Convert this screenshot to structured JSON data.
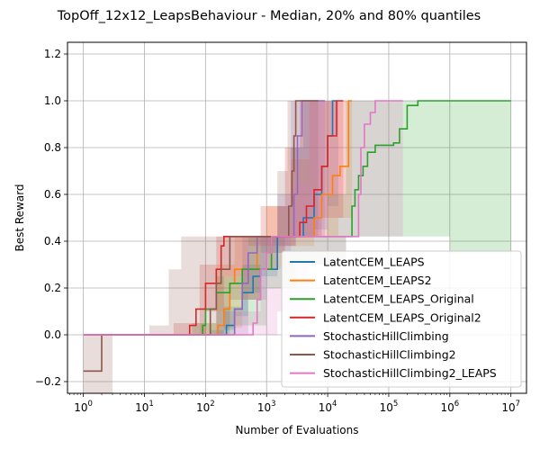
{
  "chart_data": {
    "type": "line",
    "title": "TopOff_12x12_LeapsBehaviour - Median, 20% and 80% quantiles",
    "xlabel": "Number of Evaluations",
    "ylabel": "Best Reward",
    "xscale": "log",
    "xlim": [
      0.55,
      18000000
    ],
    "ylim": [
      -0.25,
      1.25
    ],
    "x_ticks": [
      {
        "value": 1,
        "base": "10",
        "exp": "0"
      },
      {
        "value": 10,
        "base": "10",
        "exp": "1"
      },
      {
        "value": 100,
        "base": "10",
        "exp": "2"
      },
      {
        "value": 1000,
        "base": "10",
        "exp": "3"
      },
      {
        "value": 10000,
        "base": "10",
        "exp": "4"
      },
      {
        "value": 100000,
        "base": "10",
        "exp": "5"
      },
      {
        "value": 1000000,
        "base": "10",
        "exp": "6"
      },
      {
        "value": 10000000,
        "base": "10",
        "exp": "7"
      }
    ],
    "y_ticks": [
      "−0.2",
      "0.0",
      "0.2",
      "0.4",
      "0.6",
      "0.8",
      "1.0",
      "1.2"
    ],
    "y_tick_values": [
      -0.2,
      0.0,
      0.2,
      0.4,
      0.6,
      0.8,
      1.0,
      1.2
    ],
    "grid": true,
    "legend_position": "lower-right",
    "series": [
      {
        "name": "LatentCEM_LEAPS",
        "color": "#1f77b4",
        "median": [
          [
            1,
            0
          ],
          [
            200,
            0
          ],
          [
            220,
            0.04
          ],
          [
            300,
            0.11
          ],
          [
            400,
            0.18
          ],
          [
            600,
            0.25
          ],
          [
            800,
            0.28
          ],
          [
            1500,
            0.42
          ],
          [
            3000,
            0.42
          ],
          [
            4000,
            0.5
          ],
          [
            6000,
            0.6
          ],
          [
            8000,
            0.72
          ],
          [
            10000,
            0.85
          ],
          [
            12000,
            1.0
          ],
          [
            14000,
            1.0
          ]
        ],
        "band": [
          [
            [
              1,
              0
            ],
            [
              150,
              0
            ],
            [
              200,
              0.02
            ],
            [
              300,
              0.08
            ],
            [
              500,
              0.18
            ],
            [
              800,
              0.25
            ],
            [
              1500,
              0.38
            ],
            [
              3000,
              0.42
            ],
            [
              6000,
              0.45
            ],
            [
              10000,
              0.55
            ],
            [
              15000,
              0.7
            ]
          ],
          [
            [
              1,
              0
            ],
            [
              120,
              0.02
            ],
            [
              200,
              0.12
            ],
            [
              400,
              0.3
            ],
            [
              800,
              0.42
            ],
            [
              1500,
              0.55
            ],
            [
              2500,
              0.8
            ],
            [
              4000,
              1.0
            ],
            [
              15000,
              1.0
            ]
          ]
        ]
      },
      {
        "name": "LatentCEM_LEAPS2",
        "color": "#ff7f0e",
        "median": [
          [
            1,
            0
          ],
          [
            150,
            0
          ],
          [
            160,
            0.04
          ],
          [
            200,
            0.11
          ],
          [
            250,
            0.22
          ],
          [
            300,
            0.28
          ],
          [
            600,
            0.28
          ],
          [
            700,
            0.42
          ],
          [
            5000,
            0.42
          ],
          [
            6000,
            0.5
          ],
          [
            8000,
            0.6
          ],
          [
            12000,
            0.68
          ],
          [
            16000,
            0.72
          ],
          [
            20000,
            0.72
          ],
          [
            22000,
            1.0
          ],
          [
            25000,
            1.0
          ]
        ],
        "band": [
          [
            [
              1,
              0
            ],
            [
              120,
              0
            ],
            [
              200,
              0.03
            ],
            [
              400,
              0.15
            ],
            [
              800,
              0.28
            ],
            [
              2000,
              0.38
            ],
            [
              6000,
              0.42
            ],
            [
              15000,
              0.5
            ],
            [
              25000,
              0.6
            ]
          ],
          [
            [
              1,
              0
            ],
            [
              80,
              0.05
            ],
            [
              150,
              0.3
            ],
            [
              300,
              0.42
            ],
            [
              1000,
              0.55
            ],
            [
              2500,
              0.75
            ],
            [
              5000,
              1.0
            ],
            [
              25000,
              1.0
            ]
          ]
        ]
      },
      {
        "name": "LatentCEM_LEAPS_Original",
        "color": "#2ca02c",
        "median": [
          [
            1,
            0
          ],
          [
            80,
            0
          ],
          [
            90,
            0.04
          ],
          [
            100,
            0.11
          ],
          [
            150,
            0.18
          ],
          [
            250,
            0.22
          ],
          [
            400,
            0.28
          ],
          [
            1000,
            0.28
          ],
          [
            1200,
            0.42
          ],
          [
            22000,
            0.42
          ],
          [
            25000,
            0.55
          ],
          [
            28000,
            0.62
          ],
          [
            32000,
            0.68
          ],
          [
            38000,
            0.72
          ],
          [
            45000,
            0.78
          ],
          [
            60000,
            0.81
          ],
          [
            120000,
            0.82
          ],
          [
            150000,
            0.88
          ],
          [
            200000,
            0.98
          ],
          [
            300000,
            1.0
          ],
          [
            10000000,
            1.0
          ]
        ],
        "band": [
          [
            [
              1,
              0
            ],
            [
              100,
              0
            ],
            [
              300,
              0.04
            ],
            [
              1000,
              0.2
            ],
            [
              3000,
              0.3
            ],
            [
              20000,
              0.42
            ],
            [
              100000,
              0.42
            ],
            [
              1000000,
              0.35
            ],
            [
              10000000,
              0.3
            ]
          ],
          [
            [
              1,
              0
            ],
            [
              60,
              0.05
            ],
            [
              150,
              0.25
            ],
            [
              500,
              0.42
            ],
            [
              3000,
              0.42
            ],
            [
              10000,
              0.6
            ],
            [
              20000,
              1.0
            ],
            [
              10000000,
              1.0
            ]
          ]
        ]
      },
      {
        "name": "LatentCEM_LEAPS_Original2",
        "color": "#d62728",
        "median": [
          [
            1,
            0
          ],
          [
            50,
            0
          ],
          [
            55,
            0.04
          ],
          [
            70,
            0.11
          ],
          [
            100,
            0.22
          ],
          [
            150,
            0.28
          ],
          [
            180,
            0.38
          ],
          [
            200,
            0.42
          ],
          [
            3000,
            0.42
          ],
          [
            3500,
            0.48
          ],
          [
            4500,
            0.55
          ],
          [
            6000,
            0.62
          ],
          [
            8000,
            0.72
          ],
          [
            10000,
            0.85
          ],
          [
            14000,
            1.0
          ],
          [
            18000,
            1.0
          ]
        ],
        "band": [
          [
            [
              1,
              0
            ],
            [
              40,
              0
            ],
            [
              100,
              0.1
            ],
            [
              200,
              0.25
            ],
            [
              500,
              0.38
            ],
            [
              3000,
              0.42
            ],
            [
              8000,
              0.5
            ],
            [
              18000,
              0.6
            ]
          ],
          [
            [
              1,
              0
            ],
            [
              30,
              0.05
            ],
            [
              80,
              0.3
            ],
            [
              150,
              0.42
            ],
            [
              800,
              0.55
            ],
            [
              2000,
              0.8
            ],
            [
              3500,
              1.0
            ],
            [
              18000,
              1.0
            ]
          ]
        ]
      },
      {
        "name": "StochasticHillClimbing",
        "color": "#9467bd",
        "median": [
          [
            1,
            0
          ],
          [
            250,
            0
          ],
          [
            300,
            0.11
          ],
          [
            400,
            0.22
          ],
          [
            500,
            0.35
          ],
          [
            700,
            0.42
          ],
          [
            2500,
            0.42
          ],
          [
            2800,
            0.6
          ],
          [
            3200,
            0.85
          ],
          [
            3800,
            1.0
          ],
          [
            9000,
            1.0
          ]
        ],
        "band": [
          [
            [
              1,
              0
            ],
            [
              250,
              0
            ],
            [
              500,
              0.15
            ],
            [
              1000,
              0.35
            ],
            [
              2500,
              0.42
            ],
            [
              9000,
              0.6
            ]
          ],
          [
            [
              1,
              0
            ],
            [
              150,
              0.1
            ],
            [
              400,
              0.42
            ],
            [
              1500,
              0.6
            ],
            [
              2500,
              1.0
            ],
            [
              9000,
              1.0
            ]
          ]
        ]
      },
      {
        "name": "StochasticHillClimbing2",
        "color": "#8c564b",
        "median": [
          [
            1,
            -0.155
          ],
          [
            1.9,
            -0.155
          ],
          [
            2,
            0
          ],
          [
            100,
            0
          ],
          [
            120,
            0.11
          ],
          [
            150,
            0.22
          ],
          [
            180,
            0.28
          ],
          [
            250,
            0.42
          ],
          [
            2000,
            0.42
          ],
          [
            2300,
            0.55
          ],
          [
            2600,
            0.7
          ],
          [
            2800,
            0.85
          ],
          [
            3000,
            1.0
          ],
          [
            7000,
            1.0
          ]
        ],
        "band": [
          [
            [
              1,
              -0.25
            ],
            [
              2.5,
              -0.25
            ],
            [
              3,
              0
            ],
            [
              100,
              0
            ],
            [
              250,
              0.15
            ],
            [
              800,
              0.35
            ],
            [
              2000,
              0.42
            ],
            [
              7000,
              0.55
            ]
          ],
          [
            [
              1,
              0
            ],
            [
              12,
              0.04
            ],
            [
              25,
              0.28
            ],
            [
              40,
              0.42
            ],
            [
              600,
              0.42
            ],
            [
              1500,
              0.7
            ],
            [
              2200,
              1.0
            ],
            [
              7000,
              1.0
            ]
          ]
        ]
      },
      {
        "name": "StochasticHillClimbing2_LEAPS",
        "color": "#e377c2",
        "median": [
          [
            1,
            0
          ],
          [
            550,
            0
          ],
          [
            600,
            0.05
          ],
          [
            700,
            0.15
          ],
          [
            800,
            0.28
          ],
          [
            1000,
            0.35
          ],
          [
            1200,
            0.42
          ],
          [
            30000,
            0.42
          ],
          [
            32000,
            0.6
          ],
          [
            35000,
            0.8
          ],
          [
            40000,
            0.9
          ],
          [
            50000,
            0.95
          ],
          [
            60000,
            1.0
          ],
          [
            170000,
            1.0
          ]
        ],
        "band": [
          [
            [
              1,
              0
            ],
            [
              500,
              0
            ],
            [
              1500,
              0.1
            ],
            [
              5000,
              0.3
            ],
            [
              20000,
              0.42
            ],
            [
              170000,
              0.42
            ]
          ],
          [
            [
              1,
              0
            ],
            [
              300,
              0.1
            ],
            [
              800,
              0.42
            ],
            [
              2500,
              0.65
            ],
            [
              5000,
              1.0
            ],
            [
              170000,
              1.0
            ]
          ]
        ]
      }
    ]
  }
}
